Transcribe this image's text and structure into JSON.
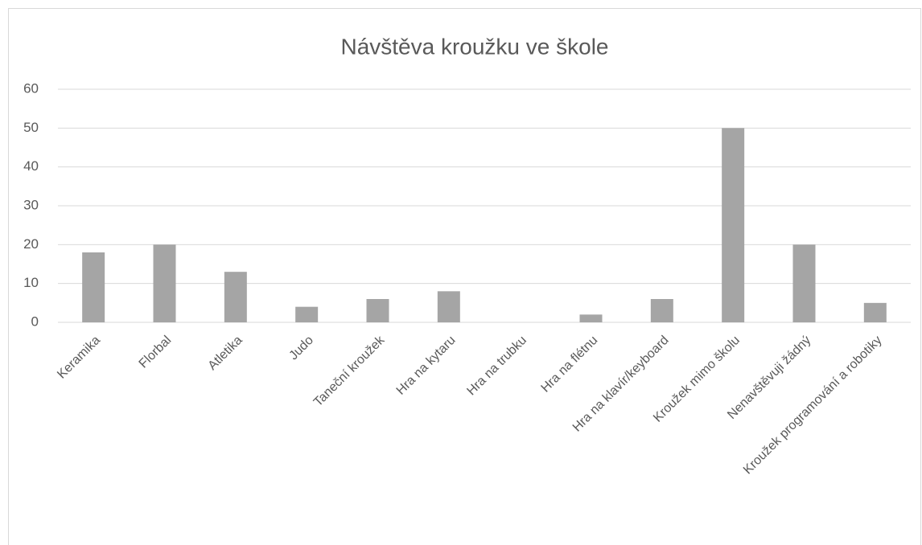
{
  "chart_data": {
    "type": "bar",
    "title": "Návštěva kroužku ve škole",
    "categories": [
      "Keramika",
      "Florbal",
      "Atletika",
      "Judo",
      "Taneční kroužek",
      "Hra na kytaru",
      "Hra na trubku",
      "Hra na flétnu",
      "Hra na klavír/keyboard",
      "Kroužek mimo školu",
      "Nenavštěvuji žádný",
      "Kroužek programování a robotiky"
    ],
    "values": [
      18,
      20,
      13,
      4,
      6,
      8,
      0,
      2,
      6,
      50,
      20,
      5
    ],
    "color": "#a5a5a5",
    "ylim": [
      0,
      60
    ],
    "yticks": [
      0,
      10,
      20,
      30,
      40,
      50,
      60
    ],
    "grid": true
  }
}
